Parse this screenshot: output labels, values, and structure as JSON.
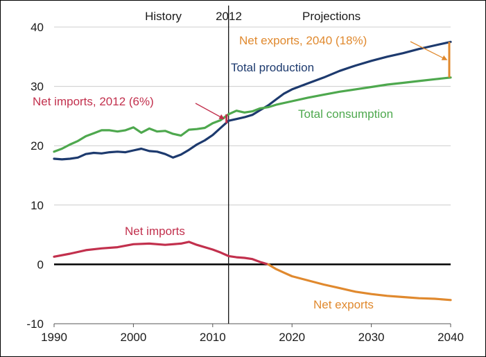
{
  "chart_data": {
    "type": "line",
    "title": "",
    "xlabel": "",
    "ylabel": "",
    "xlim": [
      1990,
      2040
    ],
    "ylim": [
      -10,
      40
    ],
    "x_ticks": [
      "1990",
      "2000",
      "2010",
      "2020",
      "2030",
      "2040"
    ],
    "y_ticks": [
      "-10",
      "0",
      "10",
      "20",
      "30",
      "40"
    ],
    "grid": "horizontal",
    "divider_year": 2012,
    "headers": {
      "history": "History",
      "divider": "2012",
      "projections": "Projections"
    },
    "colors": {
      "production": "#1d3a6e",
      "consumption": "#4ea84e",
      "imports": "#c2304d",
      "exports": "#e0892e",
      "zero_line": "#000000",
      "grid": "#cccccc"
    },
    "series": [
      {
        "name": "Total production",
        "x": [
          1990,
          1991,
          1992,
          1993,
          1994,
          1995,
          1996,
          1997,
          1998,
          1999,
          2000,
          2001,
          2002,
          2003,
          2004,
          2005,
          2006,
          2007,
          2008,
          2009,
          2010,
          2011,
          2012,
          2013,
          2014,
          2015,
          2016,
          2017,
          2018,
          2019,
          2020,
          2022,
          2024,
          2026,
          2028,
          2030,
          2032,
          2034,
          2036,
          2038,
          2040
        ],
        "values": [
          17.8,
          17.7,
          17.8,
          18.0,
          18.6,
          18.8,
          18.7,
          18.9,
          19.0,
          18.9,
          19.2,
          19.5,
          19.1,
          19.0,
          18.6,
          18.0,
          18.5,
          19.3,
          20.2,
          20.9,
          21.8,
          23.0,
          24.2,
          24.5,
          24.8,
          25.2,
          26.0,
          26.8,
          27.8,
          28.8,
          29.5,
          30.5,
          31.5,
          32.6,
          33.5,
          34.3,
          35.0,
          35.6,
          36.3,
          36.9,
          37.5
        ]
      },
      {
        "name": "Total consumption",
        "x": [
          1990,
          1991,
          1992,
          1993,
          1994,
          1995,
          1996,
          1997,
          1998,
          1999,
          2000,
          2001,
          2002,
          2003,
          2004,
          2005,
          2006,
          2007,
          2008,
          2009,
          2010,
          2011,
          2012,
          2013,
          2014,
          2015,
          2016,
          2017,
          2018,
          2020,
          2022,
          2024,
          2026,
          2028,
          2030,
          2032,
          2034,
          2036,
          2038,
          2040
        ],
        "values": [
          19.0,
          19.5,
          20.2,
          20.8,
          21.6,
          22.1,
          22.6,
          22.6,
          22.4,
          22.6,
          23.1,
          22.2,
          22.9,
          22.4,
          22.5,
          22.0,
          21.7,
          22.7,
          22.8,
          23.0,
          23.8,
          24.3,
          25.3,
          25.9,
          25.6,
          25.8,
          26.3,
          26.5,
          26.9,
          27.5,
          28.1,
          28.6,
          29.1,
          29.5,
          29.9,
          30.3,
          30.6,
          30.9,
          31.2,
          31.5
        ]
      },
      {
        "name": "Net imports",
        "x": [
          1990,
          1992,
          1994,
          1996,
          1998,
          2000,
          2002,
          2004,
          2006,
          2007,
          2008,
          2010,
          2011,
          2012,
          2013,
          2014,
          2015,
          2016,
          2017
        ],
        "values": [
          1.3,
          1.8,
          2.4,
          2.7,
          2.9,
          3.4,
          3.5,
          3.3,
          3.5,
          3.8,
          3.3,
          2.5,
          2.0,
          1.4,
          1.2,
          1.1,
          0.9,
          0.4,
          0.0
        ]
      },
      {
        "name": "Net exports",
        "x": [
          2017,
          2018,
          2019,
          2020,
          2022,
          2024,
          2026,
          2028,
          2030,
          2032,
          2034,
          2036,
          2038,
          2040
        ],
        "values": [
          0.0,
          -0.8,
          -1.4,
          -2.0,
          -2.7,
          -3.4,
          -4.0,
          -4.6,
          -5.0,
          -5.3,
          -5.5,
          -5.7,
          -5.8,
          -6.0
        ]
      }
    ],
    "annotations": [
      {
        "text": "Net imports, 2012 (6%)",
        "x": 2012,
        "y_from": 23.8,
        "y_to": 25.3
      },
      {
        "text": "Net exports, 2040 (18%)",
        "x": 2040,
        "y_from": 31.5,
        "y_to": 37.5
      }
    ]
  }
}
